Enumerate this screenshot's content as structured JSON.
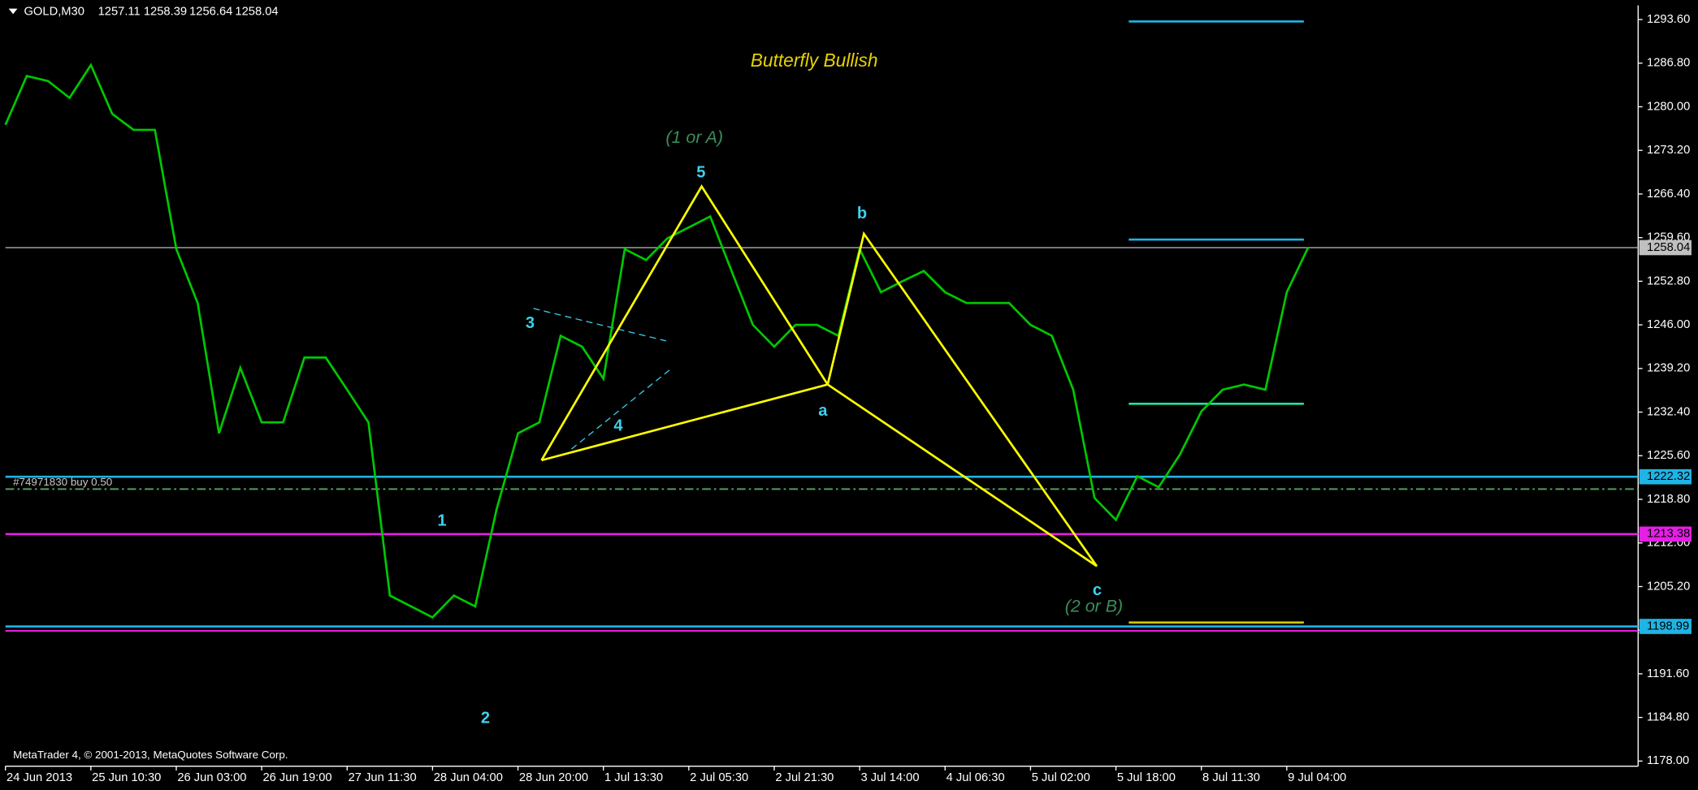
{
  "chart_data": {
    "type": "line",
    "symbol": "GOLD,M30",
    "ohlc": [
      1257.11,
      1258.39,
      1256.64,
      1258.04
    ],
    "title": "Butterfly Bullish",
    "annotations": [
      "(1 or A)",
      "(2 or B)"
    ],
    "order_label": "#74971830 buy 0.50",
    "copyright": "MetaTrader 4, © 2001-2013, MetaQuotes Software Corp.",
    "wave_labels": [
      "1",
      "2",
      "3",
      "4",
      "5",
      "a",
      "b",
      "c"
    ],
    "categories": [
      "24 Jun 2013",
      null,
      null,
      null,
      "25 Jun 10:30",
      null,
      null,
      null,
      "26 Jun 03:00",
      null,
      null,
      null,
      "26 Jun 19:00",
      null,
      null,
      null,
      "27 Jun 11:30",
      null,
      null,
      null,
      "28 Jun 04:00",
      null,
      null,
      null,
      "28 Jun 20:00",
      null,
      null,
      null,
      "1 Jul 13:30",
      null,
      null,
      null,
      "2 Jul 05:30",
      null,
      null,
      null,
      "2 Jul 21:30",
      null,
      null,
      null,
      "3 Jul 14:00",
      null,
      null,
      null,
      "4 Jul 06:30",
      null,
      null,
      null,
      "5 Jul 02:00",
      null,
      null,
      null,
      "5 Jul 18:00",
      null,
      null,
      null,
      "8 Jul 11:30",
      null,
      null,
      null,
      "9 Jul 04:00",
      null
    ],
    "series": [
      {
        "name": "GOLD",
        "color": "#00c800",
        "values": [
          1277.2,
          1284.8,
          1284,
          1281.4,
          1286.5,
          1278.9,
          1276.4,
          1276.4,
          1257.8,
          1249.4,
          1229.1,
          1239.3,
          1230.8,
          1230.8,
          1240.9,
          1240.9,
          1235.9,
          1230.8,
          1203.8,
          1202.1,
          1200.4,
          1203.8,
          1202.1,
          1217.3,
          1229.1,
          1230.8,
          1244.3,
          1242.6,
          1237.6,
          1257.8,
          1256.1,
          1259.5,
          1261.2,
          1262.9,
          1254.4,
          1246,
          1242.6,
          1246,
          1246,
          1244.3,
          1257.8,
          1251.1,
          1252.8,
          1254.4,
          1251.1,
          1249.4,
          1249.4,
          1249.4,
          1246,
          1244.3,
          1235.9,
          1219,
          1215.6,
          1222.4,
          1220.7,
          1225.8,
          1232.5,
          1235.9,
          1236.7,
          1235.9,
          1251.1,
          1258.04
        ]
      }
    ],
    "pattern": {
      "color": "#ffff00",
      "x": [
        25.1,
        32.6,
        38.5,
        25.1,
        38.5,
        40.2,
        51.1,
        38.5
      ],
      "y": [
        1224.9,
        1267.6,
        1236.7,
        1224.9,
        1236.7,
        1260.2,
        1208.4,
        1236.7
      ]
    },
    "levels": [
      {
        "value": 1258.04,
        "color": "#c0c0c0"
      },
      {
        "value": 1222.32,
        "color": "#1eb4e6"
      },
      {
        "value": 1213.38,
        "color": "#e61ee6"
      },
      {
        "value": 1198.99,
        "color": "#1eb4e6"
      }
    ],
    "lines": [
      {
        "value": 1198.3,
        "color": "#e61ee6"
      },
      {
        "value": 1220.4,
        "color": "#5a9a5a",
        "dash": "8 3 2 3"
      }
    ],
    "segments": [
      {
        "x": [
          52.6,
          60.8
        ],
        "value": 1293.3,
        "color": "#1eb4e6"
      },
      {
        "x": [
          52.6,
          60.8
        ],
        "value": 1259.3,
        "color": "#1eb4e6"
      },
      {
        "x": [
          52.6,
          60.8
        ],
        "value": 1233.7,
        "color": "#1ee6a0"
      },
      {
        "x": [
          52.6,
          60.8
        ],
        "value": 1199.6,
        "color": "#d2c800"
      }
    ],
    "ylim": [
      1177.2,
      1295.8
    ],
    "yticks": [
      {
        "value": 1293.6,
        "label": "1293.60"
      },
      {
        "value": 1286.8,
        "label": "1286.80"
      },
      {
        "value": 1280,
        "label": "1280.00"
      },
      {
        "value": 1273.2,
        "label": "1273.20"
      },
      {
        "value": 1266.4,
        "label": "1266.40"
      },
      {
        "value": 1259.6,
        "label": "1259.60"
      },
      {
        "value": 1252.8,
        "label": "1252.80"
      },
      {
        "value": 1246,
        "label": "1246.00"
      },
      {
        "value": 1239.2,
        "label": "1239.20"
      },
      {
        "value": 1232.4,
        "label": "1232.40"
      },
      {
        "value": 1225.6,
        "label": "1225.60"
      },
      {
        "value": 1218.8,
        "label": "1218.80"
      },
      {
        "value": 1212,
        "label": "1212.00"
      },
      {
        "value": 1205.2,
        "label": "1205.20"
      },
      {
        "value": 1198.4,
        "label": "1198.40"
      },
      {
        "value": 1191.6,
        "label": "1191.60"
      },
      {
        "value": 1184.8,
        "label": "1184.80"
      },
      {
        "value": 1178,
        "label": "1178.00"
      }
    ]
  }
}
